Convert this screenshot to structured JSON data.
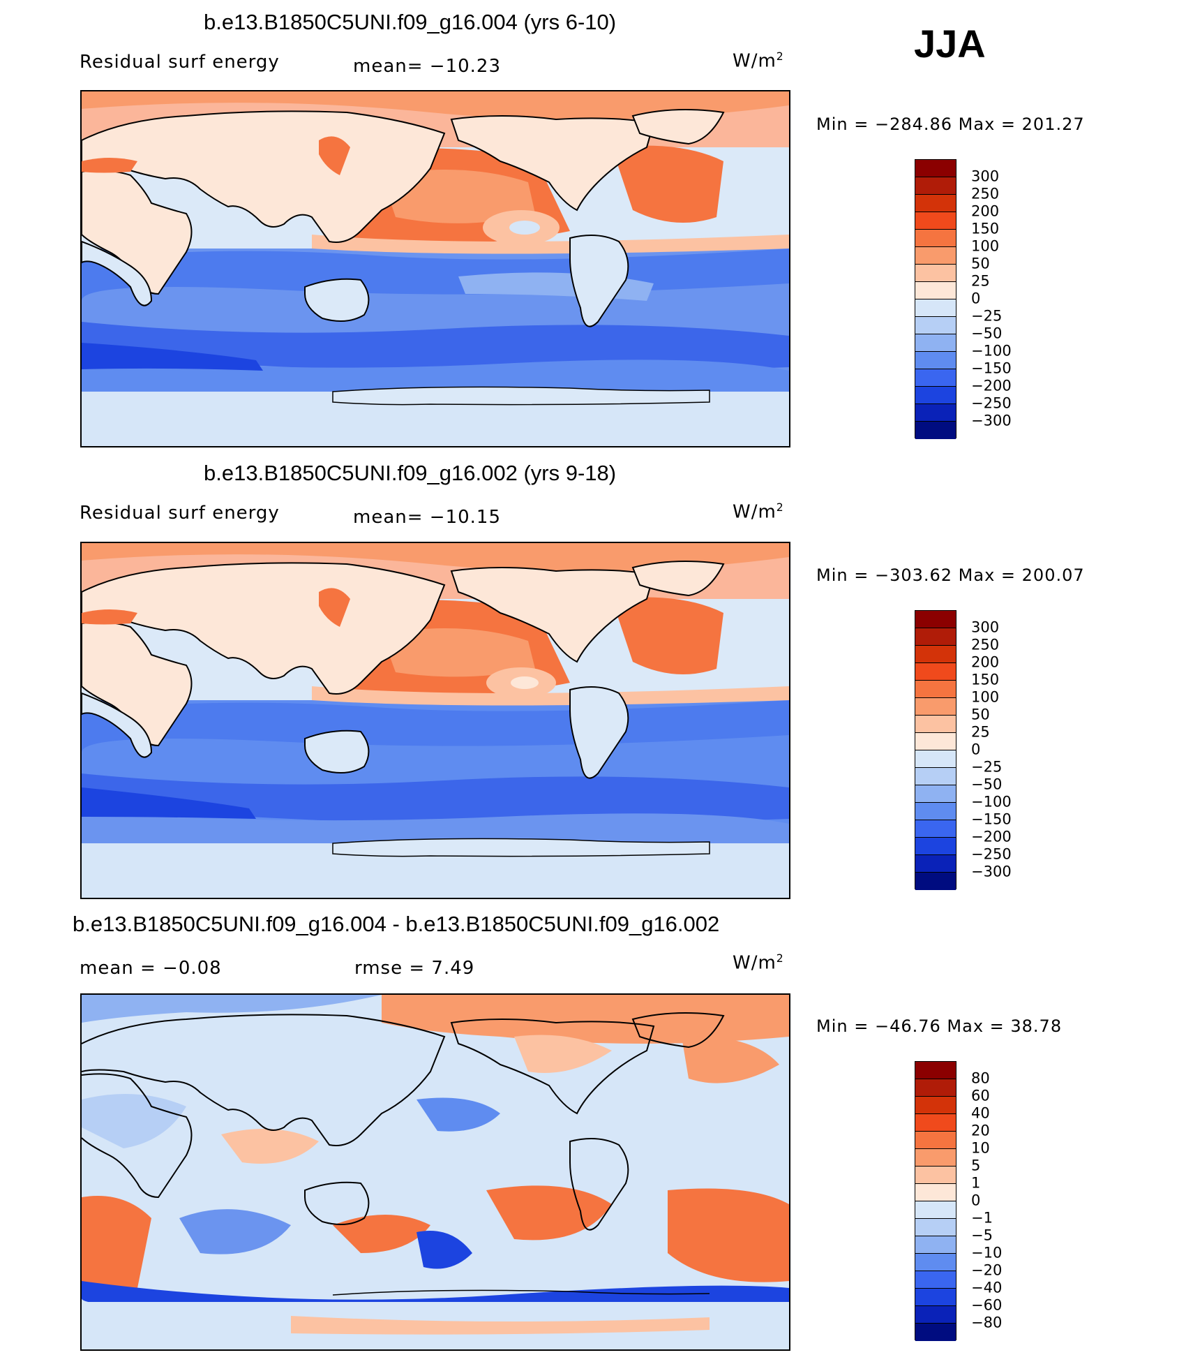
{
  "season": "JJA",
  "units_base": "W/m",
  "units_exp": "2",
  "panels": [
    {
      "title": "b.e13.B1850C5UNI.f09_g16.004 (yrs 6-10)",
      "left_label": "Residual surf energy",
      "mid_label": "mean= −10.23",
      "min_text": "Min  =  −284.86  Max  =  201.27"
    },
    {
      "title": "b.e13.B1850C5UNI.f09_g16.002 (yrs 9-18)",
      "left_label": "Residual surf energy",
      "mid_label": "mean= −10.15",
      "min_text": "Min  =  −303.62  Max  =  200.07"
    },
    {
      "title": "b.e13.B1850C5UNI.f09_g16.004 - b.e13.B1850C5UNI.f09_g16.002",
      "left_label": "mean  =    −0.08",
      "mid_label": "rmse  =     7.49",
      "min_text": "Min  =  −46.76  Max  =    38.78"
    }
  ],
  "colorbars": {
    "main": {
      "labels": [
        "300",
        "250",
        "200",
        "150",
        "100",
        "50",
        "25",
        "0",
        "−25",
        "−50",
        "−100",
        "−150",
        "−200",
        "−250",
        "−300"
      ],
      "colors": [
        "#8b0000",
        "#b01c08",
        "#d33309",
        "#f04a1c",
        "#f57440",
        "#f99b6c",
        "#fcc2a2",
        "#fde7d8",
        "#d6e6f8",
        "#b6cff5",
        "#8fb2f2",
        "#5f8cf0",
        "#3a66f0",
        "#1c44e0",
        "#0a22b8",
        "#000c80"
      ]
    },
    "diff": {
      "labels": [
        "80",
        "60",
        "40",
        "20",
        "10",
        "5",
        "1",
        "0",
        "−1",
        "−5",
        "−10",
        "−20",
        "−40",
        "−60",
        "−80"
      ],
      "colors": [
        "#8b0000",
        "#b01c08",
        "#d33309",
        "#f04a1c",
        "#f57440",
        "#f99b6c",
        "#fcc2a2",
        "#fde7d8",
        "#d6e6f8",
        "#b6cff5",
        "#8fb2f2",
        "#5f8cf0",
        "#3a66f0",
        "#1c44e0",
        "#0a22b8",
        "#000c80"
      ]
    }
  }
}
